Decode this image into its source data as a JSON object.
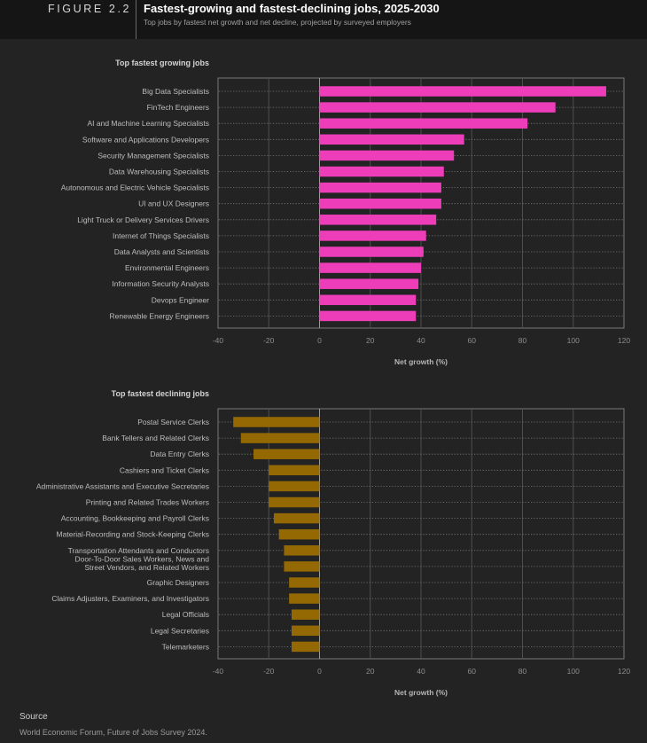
{
  "header": {
    "figure_label": "FIGURE 2.2",
    "title": "Fastest-growing and fastest-declining jobs, 2025-2030",
    "subtitle": "Top jobs by fastest net growth and net decline, projected by surveyed employers"
  },
  "chart_data": [
    {
      "type": "bar",
      "orientation": "horizontal",
      "title": "Top fastest growing jobs",
      "xlabel": "Net growth (%)",
      "xlim": [
        -40,
        120
      ],
      "xticks": [
        -40,
        -20,
        0,
        20,
        40,
        60,
        80,
        100,
        120
      ],
      "bar_color": "#ee3db9",
      "categories": [
        "Big Data Specialists",
        "FinTech Engineers",
        "AI and Machine Learning Specialists",
        "Software and Applications Developers",
        "Security Management Specialists",
        "Data Warehousing Specialists",
        "Autonomous and Electric Vehicle Specialists",
        "UI and UX Designers",
        "Light Truck or Delivery Services Drivers",
        "Internet of Things Specialists",
        "Data Analysts and Scientists",
        "Environmental Engineers",
        "Information Security Analysts",
        "Devops Engineer",
        "Renewable Energy Engineers"
      ],
      "values": [
        113,
        93,
        82,
        57,
        53,
        49,
        48,
        48,
        46,
        42,
        41,
        40,
        39,
        38,
        38
      ]
    },
    {
      "type": "bar",
      "orientation": "horizontal",
      "title": "Top fastest declining jobs",
      "xlabel": "Net growth (%)",
      "xlim": [
        -40,
        120
      ],
      "xticks": [
        -40,
        -20,
        0,
        20,
        40,
        60,
        80,
        100,
        120
      ],
      "bar_color": "#946904",
      "categories": [
        "Postal Service Clerks",
        "Bank Tellers and Related Clerks",
        "Data Entry Clerks",
        "Cashiers and Ticket Clerks",
        "Administrative Assistants and Executive Secretaries",
        "Printing and Related Trades Workers",
        "Accounting, Bookkeeping and Payroll Clerks",
        "Material-Recording and Stock-Keeping Clerks",
        "Transportation Attendants and Conductors",
        "Door-To-Door Sales Workers, News and Street Vendors, and Related Workers",
        "Graphic Designers",
        "Claims Adjusters, Examiners, and Investigators",
        "Legal Officials",
        "Legal Secretaries",
        "Telemarketers"
      ],
      "category_lines": {
        "9": [
          "Door-To-Door Sales Workers, News and",
          "Street Vendors, and Related Workers"
        ]
      },
      "values": [
        -34,
        -31,
        -26,
        -20,
        -20,
        -20,
        -18,
        -16,
        -14,
        -14,
        -12,
        -12,
        -11,
        -11,
        -11
      ]
    }
  ],
  "source": {
    "label": "Source",
    "text": "World Economic Forum, Future of Jobs Survey 2024."
  }
}
